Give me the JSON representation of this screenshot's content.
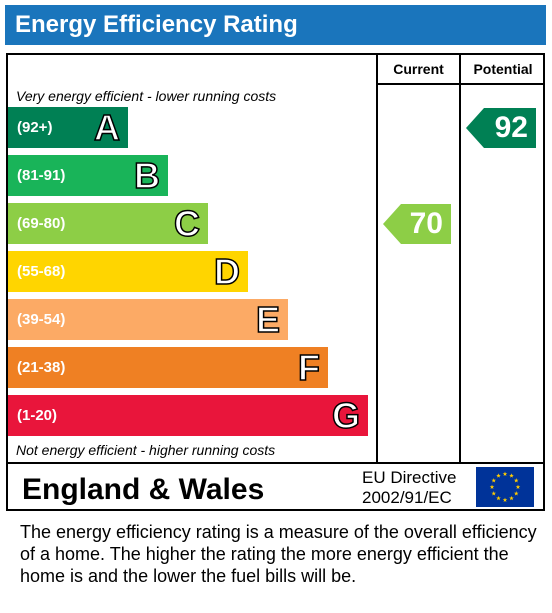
{
  "title": "Energy Efficiency Rating",
  "columns": {
    "current": "Current",
    "potential": "Potential"
  },
  "top_caption": "Very energy efficient - lower running costs",
  "bottom_caption": "Not energy efficient - higher running costs",
  "footer": {
    "region": "England & Wales",
    "directive_line1": "EU Directive",
    "directive_line2": "2002/91/EC",
    "flag_icon": "eu-flag-icon"
  },
  "description": "The energy efficiency rating is a measure of the overall efficiency of a home.  The higher the rating the more energy efficient the home is and the lower the fuel bills will be.",
  "chart_data": {
    "type": "bar",
    "categories": [
      "A",
      "B",
      "C",
      "D",
      "E",
      "F",
      "G"
    ],
    "bands": [
      {
        "letter": "A",
        "range": "(92+)",
        "color": "#008054"
      },
      {
        "letter": "B",
        "range": "(81-91)",
        "color": "#19b459"
      },
      {
        "letter": "C",
        "range": "(69-80)",
        "color": "#8dce46"
      },
      {
        "letter": "D",
        "range": "(55-68)",
        "color": "#ffd500"
      },
      {
        "letter": "E",
        "range": "(39-54)",
        "color": "#fcaa65"
      },
      {
        "letter": "F",
        "range": "(21-38)",
        "color": "#ef8023"
      },
      {
        "letter": "G",
        "range": "(1-20)",
        "color": "#e9153b"
      }
    ],
    "current": {
      "value": "70",
      "band": "C",
      "color": "#8dce46"
    },
    "potential": {
      "value": "92",
      "band": "A",
      "color": "#008054"
    }
  }
}
